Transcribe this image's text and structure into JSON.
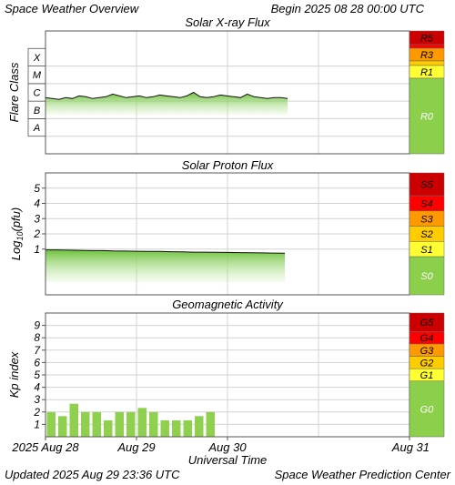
{
  "header": {
    "title": "Space Weather Overview",
    "begin_label": "Begin",
    "begin_value": "2025 08 28 00:00 UTC"
  },
  "footer": {
    "updated_label": "Updated",
    "updated_value": "2025 Aug 29 23:36 UTC",
    "source": "Space Weather Prediction Center"
  },
  "xaxis": {
    "label": "Universal Time",
    "ticks": [
      "2025 Aug 28",
      "Aug 29",
      "Aug 30",
      "Aug 31"
    ]
  },
  "colors": {
    "green_bar": "#8fd14f",
    "green_scale": "#8ccf4a",
    "grid": "#d3d3d3",
    "r5": "#cc0000",
    "r4": "#ff0000",
    "r3": "#ff9900",
    "r2": "#ffcc00",
    "r1": "#ffff33",
    "frame": "#555555"
  },
  "chart_data": [
    {
      "type": "area",
      "title": "Solar X-ray Flux",
      "ylabel": "Flare Class",
      "yclasses": [
        "A",
        "B",
        "C",
        "M",
        "X"
      ],
      "yrange_log10_wm2": [
        -9,
        -2
      ],
      "x_days_start": "2025-08-28",
      "series": [
        {
          "values_log10_wm2": [
            -5.8,
            -5.85,
            -5.9,
            -5.8,
            -5.85,
            -5.7,
            -5.75,
            -5.85,
            -5.8,
            -5.75,
            -5.6,
            -5.7,
            -5.8,
            -5.75,
            -5.7,
            -5.8,
            -5.75,
            -5.65,
            -5.7,
            -5.75,
            -5.8,
            -5.7,
            -5.5,
            -5.75,
            -5.8,
            -5.75,
            -5.65,
            -5.7,
            -5.75,
            -5.8,
            -5.6,
            -5.75,
            -5.8,
            -5.85,
            -5.8,
            -5.8,
            -5.85
          ]
        }
      ],
      "scale_labels": [
        "R5",
        "R3",
        "R1",
        "R0"
      ]
    },
    {
      "type": "area",
      "title": "Solar Proton Flux",
      "ylabel": "Log10(pfu)",
      "ytick_labels": [
        "1",
        "2",
        "3",
        "4",
        "5"
      ],
      "yrange": [
        -2,
        6
      ],
      "series": [
        {
          "values_log10_pfu": [
            0.95,
            0.95,
            0.93,
            0.92,
            0.9,
            0.9,
            0.88,
            0.87,
            0.86,
            0.85,
            0.85,
            0.83,
            0.82,
            0.8,
            0.8,
            0.79,
            0.78,
            0.77,
            0.76,
            0.75,
            0.74,
            0.73
          ]
        }
      ],
      "scale_labels": [
        "S5",
        "S4",
        "S3",
        "S2",
        "S1",
        "S0"
      ]
    },
    {
      "type": "bar",
      "title": "Geomagnetic Activity",
      "ylabel": "Kp index",
      "ytick_labels": [
        "1",
        "2",
        "3",
        "4",
        "5",
        "6",
        "7",
        "8",
        "9"
      ],
      "ylim": [
        0,
        10
      ],
      "interval_hours": 3,
      "values": [
        2.0,
        1.67,
        2.67,
        2.0,
        2.0,
        1.33,
        2.0,
        2.0,
        2.33,
        2.0,
        1.33,
        1.33,
        1.33,
        1.67,
        2.0
      ],
      "scale_labels": [
        "G5",
        "G4",
        "G3",
        "G2",
        "G1",
        "G0"
      ]
    }
  ]
}
